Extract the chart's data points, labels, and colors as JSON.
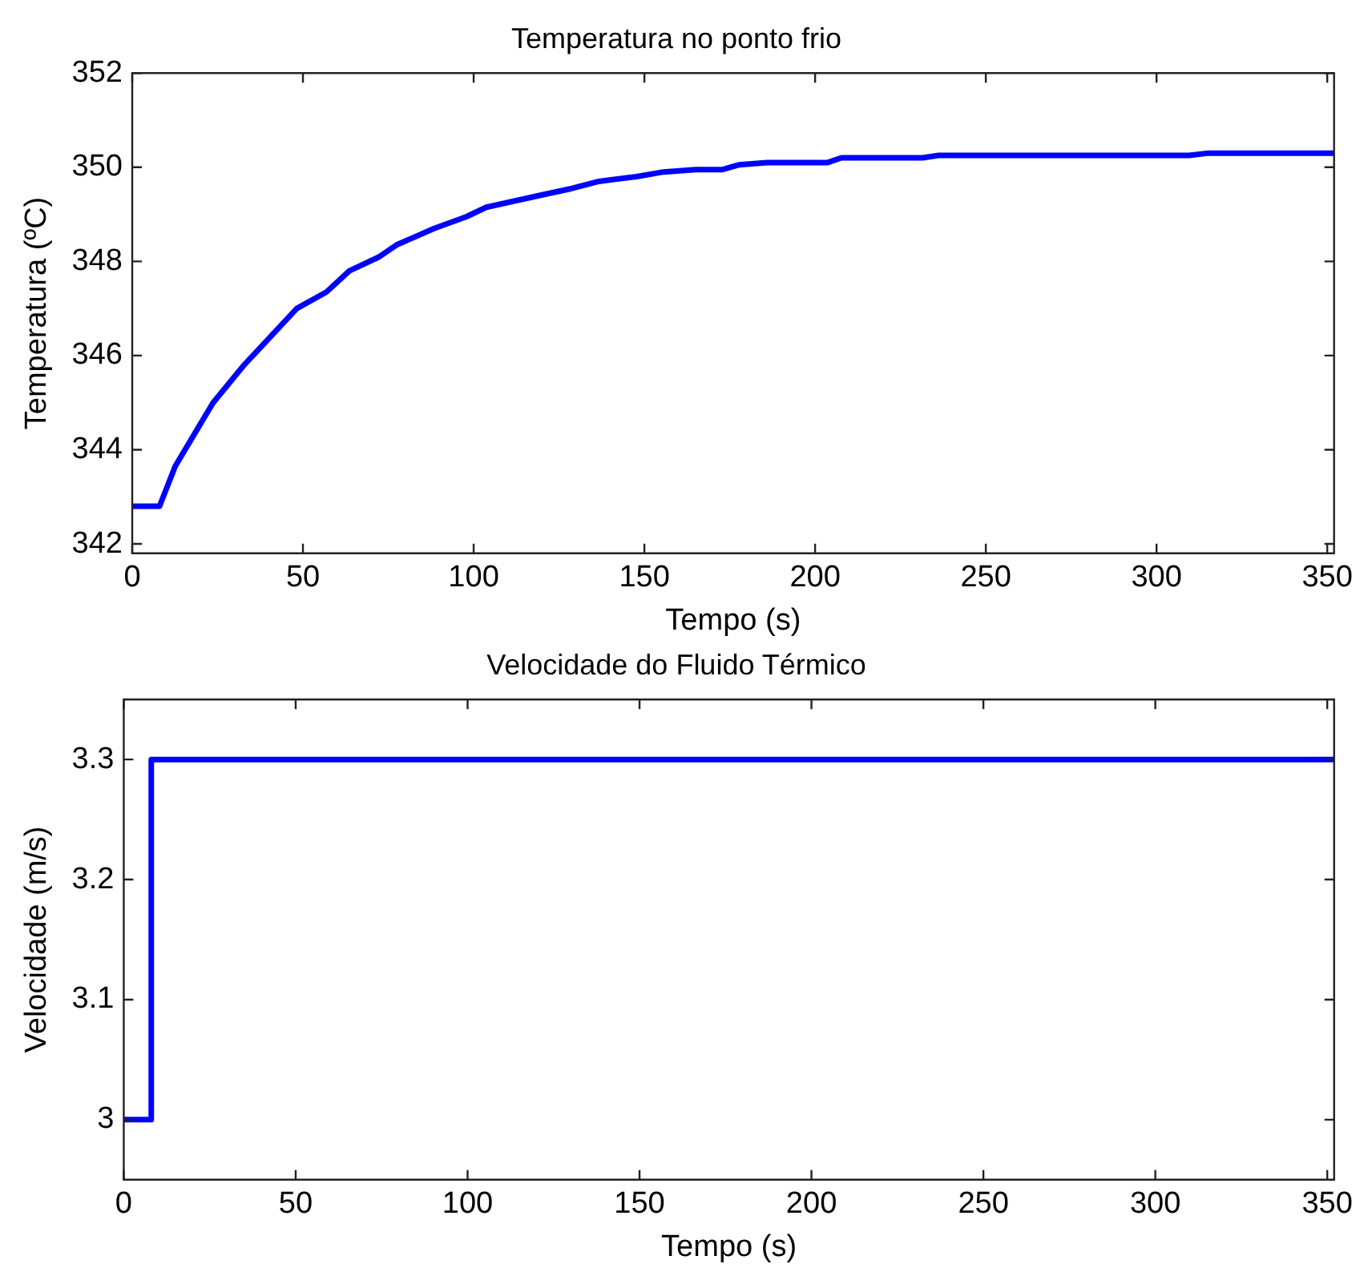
{
  "chart_data": [
    {
      "type": "line",
      "title": "Temperatura no ponto frio",
      "xlabel": "Tempo (s)",
      "ylabel": "Temperatura (ºC)",
      "xlim": [
        0,
        352
      ],
      "xticks": [
        0,
        50,
        100,
        150,
        200,
        250,
        300,
        350
      ],
      "ylim": [
        341.8,
        352
      ],
      "yticks": [
        342,
        344,
        346,
        348,
        350,
        352
      ],
      "series": [
        {
          "color": "#0000ff",
          "x": [
            0,
            8,
            12.6,
            23.7,
            32.4,
            48.2,
            56.9,
            63.6,
            72.4,
            77.4,
            88.4,
            97.9,
            103.7,
            119.3,
            128.8,
            136.7,
            147.7,
            155.6,
            165,
            172.9,
            177.6,
            186,
            203.7,
            207.7,
            231.5,
            236.2,
            309.6,
            315.2,
            352
          ],
          "values": [
            342.8,
            342.8,
            343.65,
            345,
            345.77,
            347,
            347.35,
            347.8,
            348.1,
            348.35,
            348.7,
            348.95,
            349.15,
            349.4,
            349.55,
            349.7,
            349.8,
            349.9,
            349.95,
            349.95,
            350.05,
            350.1,
            350.1,
            350.2,
            350.2,
            350.25,
            350.25,
            350.3,
            350.3
          ]
        }
      ]
    },
    {
      "type": "line",
      "title": "Velocidade do Fluido Térmico",
      "xlabel": "Tempo (s)",
      "ylabel": "Velocidade (m/s)",
      "xlim": [
        0,
        352
      ],
      "xticks": [
        0,
        50,
        100,
        150,
        200,
        250,
        300,
        350
      ],
      "ylim": [
        2.95,
        3.35
      ],
      "yticks": [
        3,
        {
          "value": 3.1,
          "label": "3.1"
        },
        {
          "value": 3.2,
          "label": "3.2"
        },
        {
          "value": 3.3,
          "label": "3.3"
        }
      ],
      "series": [
        {
          "color": "#0000ff",
          "x": [
            0,
            8,
            8,
            352
          ],
          "values": [
            3,
            3,
            3.3,
            3.3
          ]
        }
      ]
    }
  ]
}
